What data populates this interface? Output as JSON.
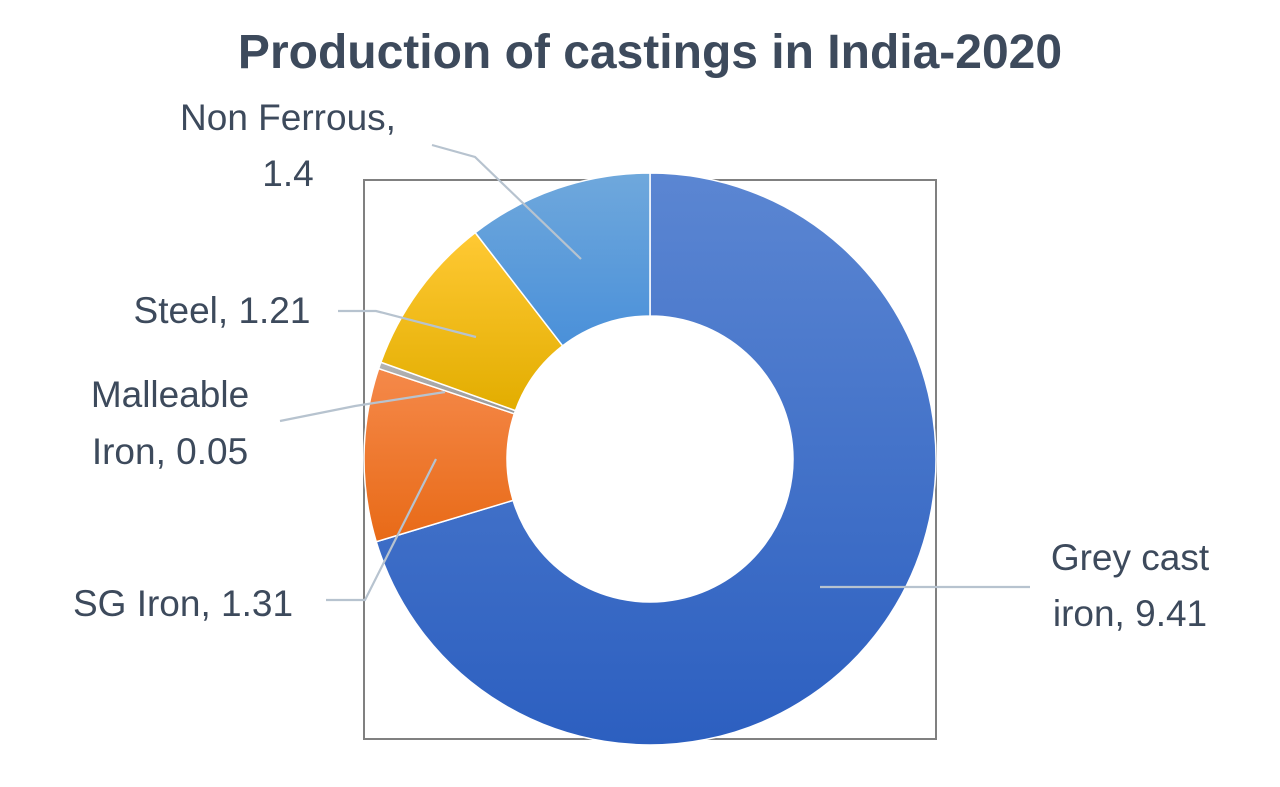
{
  "chart_data": {
    "type": "pie",
    "title": "Production of castings in India-2020",
    "categories": [
      "Grey cast iron",
      "SG Iron",
      "Malleable Iron",
      "Steel",
      "Non Ferrous"
    ],
    "values": [
      9.41,
      1.31,
      0.05,
      1.21,
      1.4
    ],
    "data_labels": [
      "Grey cast iron, 9.41",
      "SG Iron, 1.31",
      "Malleable Iron, 0.05",
      "Steel, 1.21",
      "Non Ferrous, 1.4"
    ],
    "colors": [
      "#3a6fcf",
      "#ef7d32",
      "#a5a5a5",
      "#f2b70f",
      "#5b9bd5"
    ],
    "donut": true
  }
}
